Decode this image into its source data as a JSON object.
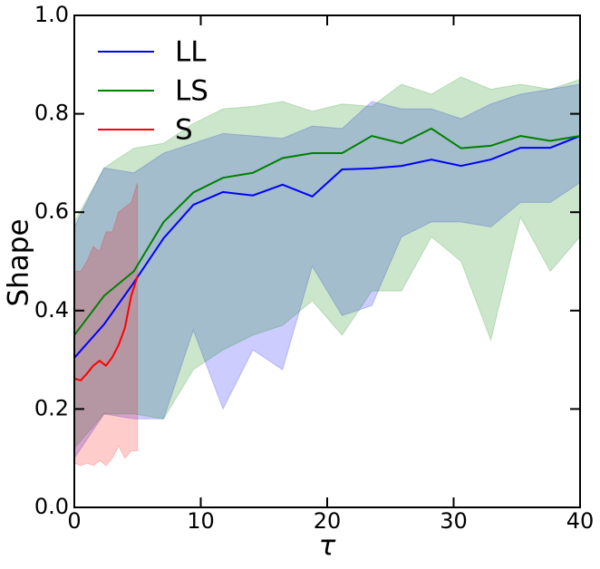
{
  "chart_data": {
    "type": "line",
    "xlabel": "τ",
    "ylabel": "Shape",
    "xlim": [
      0,
      40
    ],
    "ylim": [
      0,
      1
    ],
    "xticks": [
      0,
      10,
      20,
      30,
      40
    ],
    "yticks": [
      {
        "value": 0,
        "label": "0.0"
      },
      {
        "value": 0.2,
        "label": "0.2"
      },
      {
        "value": 0.4,
        "label": "0.4"
      },
      {
        "value": 0.6,
        "label": "0.6"
      },
      {
        "value": 0.8,
        "label": "0.8"
      },
      {
        "value": 1,
        "label": "1.0"
      }
    ],
    "legend": "upper left",
    "band_opacity": 0.2,
    "series": [
      {
        "name": "LL",
        "color": "#0000ff",
        "x": [
          0,
          2.35,
          4.71,
          7.06,
          9.41,
          11.76,
          14.12,
          16.47,
          18.82,
          21.18,
          23.53,
          25.88,
          28.24,
          30.59,
          32.94,
          35.29,
          37.65,
          40
        ],
        "values": [
          0.304,
          0.372,
          0.457,
          0.547,
          0.615,
          0.641,
          0.634,
          0.656,
          0.632,
          0.687,
          0.689,
          0.694,
          0.707,
          0.694,
          0.707,
          0.731,
          0.731,
          0.755
        ],
        "upper": [
          0.57,
          0.69,
          0.68,
          0.72,
          0.74,
          0.76,
          0.755,
          0.75,
          0.775,
          0.77,
          0.825,
          0.81,
          0.81,
          0.79,
          0.82,
          0.84,
          0.85,
          0.86
        ],
        "lower": [
          0.1,
          0.19,
          0.18,
          0.18,
          0.36,
          0.2,
          0.32,
          0.28,
          0.49,
          0.39,
          0.41,
          0.55,
          0.58,
          0.58,
          0.57,
          0.62,
          0.62,
          0.66
        ]
      },
      {
        "name": "LS",
        "color": "#008000",
        "x": [
          0,
          2.35,
          4.71,
          7.06,
          9.41,
          11.76,
          14.12,
          16.47,
          18.82,
          21.18,
          23.53,
          25.88,
          28.24,
          30.59,
          32.94,
          35.29,
          37.65,
          40
        ],
        "values": [
          0.35,
          0.43,
          0.48,
          0.58,
          0.64,
          0.67,
          0.68,
          0.71,
          0.72,
          0.72,
          0.755,
          0.74,
          0.77,
          0.73,
          0.735,
          0.755,
          0.745,
          0.755
        ],
        "upper": [
          0.58,
          0.69,
          0.73,
          0.74,
          0.78,
          0.81,
          0.815,
          0.825,
          0.805,
          0.82,
          0.815,
          0.86,
          0.84,
          0.875,
          0.85,
          0.86,
          0.85,
          0.87
        ],
        "lower": [
          0.12,
          0.19,
          0.19,
          0.18,
          0.28,
          0.32,
          0.35,
          0.37,
          0.42,
          0.35,
          0.44,
          0.44,
          0.55,
          0.5,
          0.34,
          0.59,
          0.48,
          0.55
        ]
      },
      {
        "name": "S",
        "color": "#ff0000",
        "x": [
          0,
          0.5,
          1,
          1.5,
          2,
          2.5,
          3,
          3.5,
          4,
          4.5,
          5
        ],
        "values": [
          0.262,
          0.258,
          0.272,
          0.288,
          0.298,
          0.288,
          0.305,
          0.33,
          0.365,
          0.43,
          0.47
        ],
        "upper": [
          0.48,
          0.48,
          0.5,
          0.53,
          0.52,
          0.56,
          0.56,
          0.6,
          0.61,
          0.62,
          0.66
        ],
        "lower": [
          0.09,
          0.085,
          0.09,
          0.085,
          0.095,
          0.085,
          0.1,
          0.125,
          0.1,
          0.115,
          0.115
        ]
      }
    ]
  }
}
